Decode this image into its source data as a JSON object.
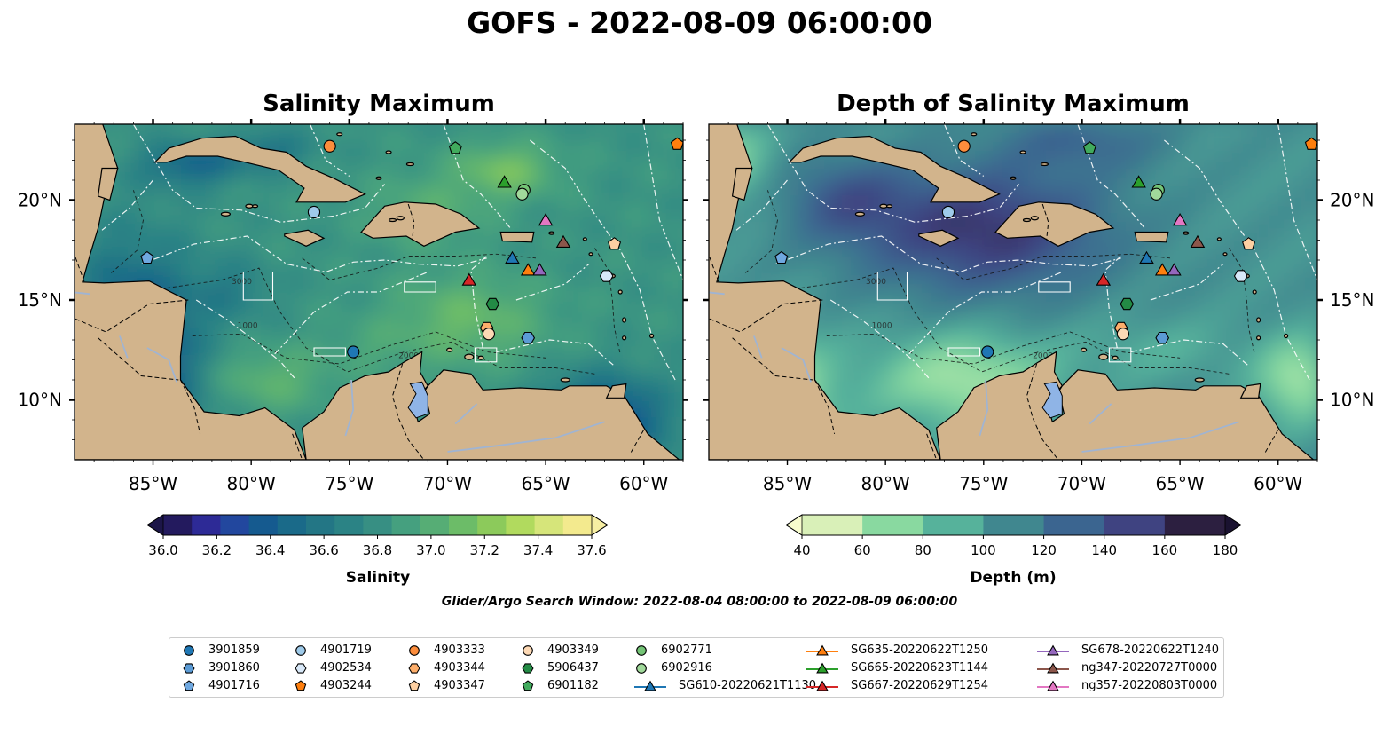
{
  "suptitle": "GOFS - 2022-08-09 06:00:00",
  "search_window": "Glider/Argo Search Window: 2022-08-04 08:00:00 to 2022-08-09 06:00:00",
  "colors": {
    "land": "#d2b48c",
    "lake": "#8fb4e6",
    "river": "#a0b4d2",
    "marker_edge": "#000000"
  },
  "chart_data": [
    {
      "type": "heatmap",
      "title": "Salinity Maximum",
      "x_ticks": [
        "85°W",
        "80°W",
        "75°W",
        "70°W",
        "65°W",
        "60°W"
      ],
      "x_tick_values": [
        -85,
        -80,
        -75,
        -70,
        -65,
        -60
      ],
      "y_ticks": [
        "20°N",
        "15°N",
        "10°N"
      ],
      "y_tick_values": [
        20,
        15,
        10
      ],
      "xlim": [
        -89,
        -58
      ],
      "ylim": [
        7,
        23.8
      ],
      "colorbar": {
        "label": "Salinity",
        "extend": "both",
        "ticks": [
          "36.0",
          "36.2",
          "36.4",
          "36.6",
          "36.8",
          "37.0",
          "37.2",
          "37.4",
          "37.6"
        ],
        "range": [
          36.0,
          37.6
        ],
        "colors": [
          "#231a5e",
          "#2d2a96",
          "#22479e",
          "#155a8f",
          "#1a6a89",
          "#237685",
          "#2b8385",
          "#378f83",
          "#45a07f",
          "#56ad75",
          "#6cbc68",
          "#8cca5b",
          "#b1da5e",
          "#d6e57a",
          "#f3ea8e"
        ],
        "under": "#1c1548",
        "over": "#f7efa3"
      },
      "contour_labels": [
        "1000",
        "2000",
        "3000"
      ]
    },
    {
      "type": "heatmap",
      "title": "Depth of Salinity Maximum",
      "x_ticks": [
        "85°W",
        "80°W",
        "75°W",
        "70°W",
        "65°W",
        "60°W"
      ],
      "x_tick_values": [
        -85,
        -80,
        -75,
        -70,
        -65,
        -60
      ],
      "y_ticks": [
        "20°N",
        "15°N",
        "10°N"
      ],
      "y_tick_values": [
        20,
        15,
        10
      ],
      "xlim": [
        -89,
        -58
      ],
      "ylim": [
        7,
        23.8
      ],
      "colorbar": {
        "label": "Depth (m)",
        "extend": "both",
        "ticks": [
          "40",
          "60",
          "80",
          "100",
          "120",
          "140",
          "160",
          "180"
        ],
        "range": [
          40,
          180
        ],
        "colors": [
          "#d9f0b8",
          "#89d9a0",
          "#56b29b",
          "#40878f",
          "#3b6590",
          "#3f4381",
          "#2c1f40"
        ],
        "under": "#f7fccd",
        "over": "#1a1230"
      },
      "contour_labels": [
        "1000",
        "2000",
        "3000"
      ]
    }
  ],
  "observations": [
    {
      "id": "3901859",
      "lon": -74.8,
      "lat": 12.4,
      "marker": "circle",
      "color": "#1f77b4"
    },
    {
      "id": "3901860",
      "lon": -65.9,
      "lat": 13.1,
      "marker": "hexagon",
      "color": "#5b9bd5"
    },
    {
      "id": "4901716",
      "lon": -85.3,
      "lat": 17.1,
      "marker": "pentagon",
      "color": "#6fa8e0"
    },
    {
      "id": "4901719",
      "lon": -76.8,
      "lat": 19.4,
      "marker": "circle",
      "color": "#9ecae9"
    },
    {
      "id": "4902534",
      "lon": -61.9,
      "lat": 16.2,
      "marker": "hexagon",
      "color": "#d8e8f8"
    },
    {
      "id": "4903244",
      "lon": -58.3,
      "lat": 22.8,
      "marker": "pentagon",
      "color": "#ff7f0e"
    },
    {
      "id": "4903333",
      "lon": -76.0,
      "lat": 22.7,
      "marker": "circle",
      "color": "#fd8d3c"
    },
    {
      "id": "4903344",
      "lon": -68.0,
      "lat": 13.6,
      "marker": "hexagon",
      "color": "#fdae6b"
    },
    {
      "id": "4903347",
      "lon": -61.5,
      "lat": 17.8,
      "marker": "pentagon",
      "color": "#fdd0a2"
    },
    {
      "id": "4903349",
      "lon": -67.9,
      "lat": 13.3,
      "marker": "circle",
      "color": "#fdd9b5"
    },
    {
      "id": "5906437",
      "lon": -67.7,
      "lat": 14.8,
      "marker": "hexagon",
      "color": "#238b45"
    },
    {
      "id": "6901182",
      "lon": -69.6,
      "lat": 22.6,
      "marker": "pentagon",
      "color": "#41ab5d"
    },
    {
      "id": "6902771",
      "lon": -66.1,
      "lat": 20.5,
      "marker": "circle",
      "color": "#74c476"
    },
    {
      "id": "6902916",
      "lon": -66.2,
      "lat": 20.3,
      "marker": "circle",
      "color": "#a1d99b"
    },
    {
      "id": "SG610-20220621T1130",
      "lon": -66.7,
      "lat": 17.1,
      "marker": "triangle",
      "color": "#1f77b4"
    },
    {
      "id": "SG635-20220622T1250",
      "lon": -65.9,
      "lat": 16.5,
      "marker": "triangle",
      "color": "#ff7f0e"
    },
    {
      "id": "SG665-20220623T1144",
      "lon": -67.1,
      "lat": 20.9,
      "marker": "triangle",
      "color": "#2ca02c"
    },
    {
      "id": "SG667-20220629T1254",
      "lon": -68.9,
      "lat": 16.0,
      "marker": "triangle",
      "color": "#d62728"
    },
    {
      "id": "SG678-20220622T1240",
      "lon": -65.3,
      "lat": 16.5,
      "marker": "triangle",
      "color": "#9467bd"
    },
    {
      "id": "ng347-20220727T0000",
      "lon": -64.1,
      "lat": 17.9,
      "marker": "triangle",
      "color": "#8c564b"
    },
    {
      "id": "ng357-20220803T0000",
      "lon": -65.0,
      "lat": 19.0,
      "marker": "triangle",
      "color": "#e377c2"
    }
  ]
}
